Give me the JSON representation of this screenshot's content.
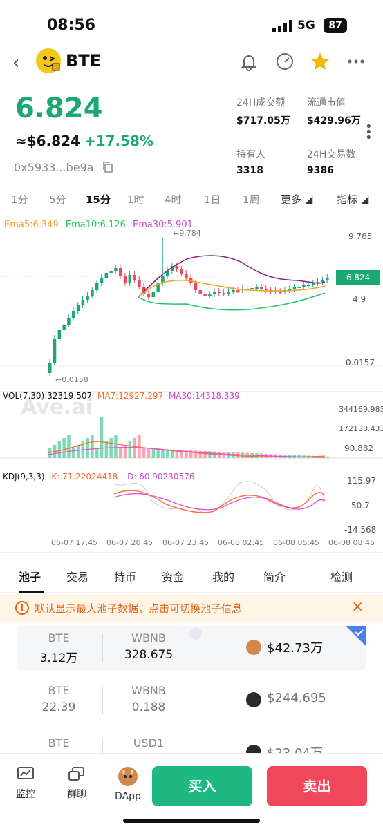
{
  "status": {
    "time": "08:56",
    "network": "5G",
    "battery": "87"
  },
  "header": {
    "coin": "BTE",
    "icons": [
      "back-icon",
      "bell-icon",
      "gauge-icon",
      "star-icon",
      "more-icon"
    ]
  },
  "price": {
    "main": "6.824",
    "usd": "≈$6.824",
    "change": "+17.58%",
    "address": "0x5933...be9a"
  },
  "stats": [
    {
      "label": "24H成交额",
      "value": "$717.05万"
    },
    {
      "label": "流通市值",
      "value": "$429.96万"
    },
    {
      "label": "持有人",
      "value": "3318"
    },
    {
      "label": "24H交易数",
      "value": "9386"
    }
  ],
  "timeframes": [
    "1分",
    "5分",
    "15分",
    "1时",
    "4时",
    "1日",
    "1周",
    "更多",
    "指标"
  ],
  "active_timeframe": "15分",
  "ema": {
    "ema5": "Ema5:6.349",
    "ema10": "Ema10:6.126",
    "ema30": "Ema30:5.901"
  },
  "price_axis": {
    "top": "9.785",
    "mid": "4.9",
    "bottom": "0.0157",
    "max_marker": "←9.784",
    "min_marker": "←0.0158",
    "current": "6.824"
  },
  "volume": {
    "label": "VOL(7,30):32319.507",
    "ma7": "MA7:12927.297",
    "ma30": "MA30:14318.339",
    "axis": [
      "344169.983",
      "172130.433",
      "90.882"
    ]
  },
  "kdj": {
    "label": "KDJ(9,3,3)",
    "k": "K:  71.22024418",
    "d": "D:  60.90230576",
    "axis": [
      "115.97",
      "50.7",
      "-14.568"
    ]
  },
  "watermark": "Ave.ai",
  "x_axis": [
    "06-07 17:45",
    "06-07 20:45",
    "06-07 23:45",
    "06-08 02:45",
    "06-08 05:45",
    "06-08 08:45"
  ],
  "tabs": [
    "池子",
    "交易",
    "持币",
    "资金",
    "我的",
    "简介",
    "检测"
  ],
  "notice": "默认显示最大池子数据，点击可切换池子信息",
  "pools": [
    {
      "token_a": "BTE",
      "amount_a": "3.12万",
      "token_b": "WBNB",
      "amount_b": "328.675",
      "liquidity": "$42.73万"
    },
    {
      "token_a": "BTE",
      "amount_a": "22.39",
      "token_b": "WBNB",
      "amount_b": "0.188",
      "liquidity": "$244.695"
    },
    {
      "token_a": "BTE",
      "amount_a": "",
      "token_b": "USD1",
      "amount_b": "",
      "liquidity": "$23.04万"
    }
  ],
  "bottom_nav": [
    {
      "label": "监控",
      "icon": "monitor-icon"
    },
    {
      "label": "群聊",
      "icon": "chat-icon"
    },
    {
      "label": "DApp",
      "icon": "dapp-icon"
    }
  ],
  "actions": {
    "buy": "买入",
    "sell": "卖出"
  },
  "colors": {
    "up": "#1aa875",
    "down": "#f0475b",
    "ema5": "#f4a020",
    "ema10": "#22c55e",
    "ema30": "#8b1a8b"
  }
}
